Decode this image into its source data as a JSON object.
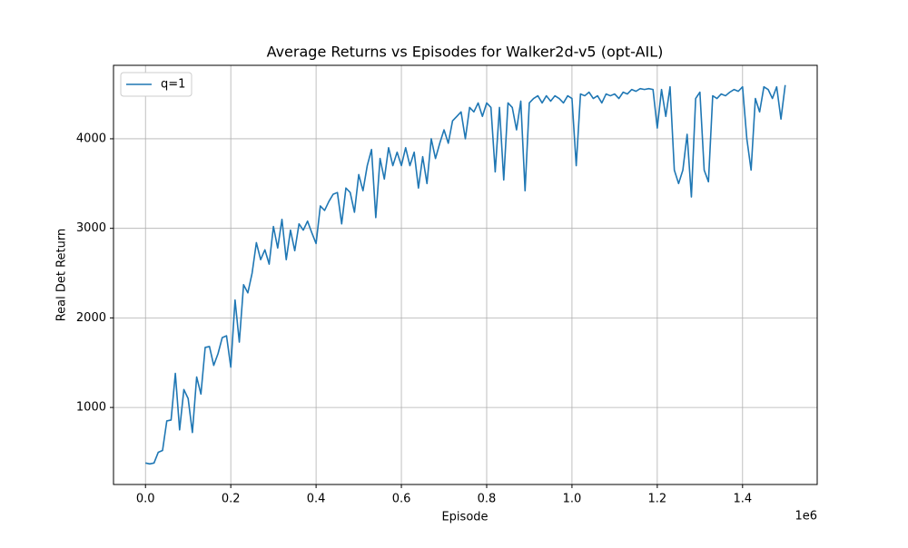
{
  "chart_data": {
    "type": "line",
    "title": "Average Returns vs Episodes for Walker2d-v5 (opt-AIL)",
    "x_label": "Episode",
    "y_label": "Real Det Return",
    "x_offset_label": "1e6",
    "x": [
      0,
      10000,
      20000,
      30000,
      40000,
      50000,
      60000,
      70000,
      80000,
      90000,
      100000,
      110000,
      120000,
      130000,
      140000,
      150000,
      160000,
      170000,
      180000,
      190000,
      200000,
      210000,
      220000,
      230000,
      240000,
      250000,
      260000,
      270000,
      280000,
      290000,
      300000,
      310000,
      320000,
      330000,
      340000,
      350000,
      360000,
      370000,
      380000,
      390000,
      400000,
      410000,
      420000,
      430000,
      440000,
      450000,
      460000,
      470000,
      480000,
      490000,
      500000,
      510000,
      520000,
      530000,
      540000,
      550000,
      560000,
      570000,
      580000,
      590000,
      600000,
      610000,
      620000,
      630000,
      640000,
      650000,
      660000,
      670000,
      680000,
      690000,
      700000,
      710000,
      720000,
      730000,
      740000,
      750000,
      760000,
      770000,
      780000,
      790000,
      800000,
      810000,
      820000,
      830000,
      840000,
      850000,
      860000,
      870000,
      880000,
      890000,
      900000,
      910000,
      920000,
      930000,
      940000,
      950000,
      960000,
      970000,
      980000,
      990000,
      1000000,
      1010000,
      1020000,
      1030000,
      1040000,
      1050000,
      1060000,
      1070000,
      1080000,
      1090000,
      1100000,
      1110000,
      1120000,
      1130000,
      1140000,
      1150000,
      1160000,
      1170000,
      1180000,
      1190000,
      1200000,
      1210000,
      1220000,
      1230000,
      1240000,
      1250000,
      1260000,
      1270000,
      1280000,
      1290000,
      1300000,
      1310000,
      1320000,
      1330000,
      1340000,
      1350000,
      1360000,
      1370000,
      1380000,
      1390000,
      1400000,
      1410000,
      1420000,
      1430000,
      1440000,
      1450000,
      1460000,
      1470000,
      1480000,
      1490000,
      1500000
    ],
    "series": [
      {
        "name": "q=1",
        "color": "#1f77b4",
        "values": [
          380,
          370,
          380,
          500,
          520,
          850,
          860,
          1380,
          750,
          1200,
          1100,
          720,
          1340,
          1150,
          1670,
          1680,
          1470,
          1600,
          1780,
          1800,
          1450,
          2200,
          1730,
          2370,
          2280,
          2500,
          2840,
          2650,
          2760,
          2600,
          3020,
          2780,
          3100,
          2650,
          2980,
          2750,
          3050,
          2980,
          3080,
          2950,
          2830,
          3250,
          3200,
          3300,
          3380,
          3400,
          3050,
          3450,
          3400,
          3180,
          3600,
          3420,
          3700,
          3880,
          3120,
          3780,
          3550,
          3900,
          3700,
          3850,
          3700,
          3900,
          3700,
          3850,
          3450,
          3800,
          3500,
          4000,
          3780,
          3950,
          4100,
          3950,
          4200,
          4250,
          4300,
          4000,
          4350,
          4300,
          4400,
          4250,
          4400,
          4350,
          3630,
          4350,
          3540,
          4400,
          4350,
          4100,
          4420,
          3420,
          4400,
          4450,
          4480,
          4400,
          4480,
          4420,
          4480,
          4450,
          4400,
          4480,
          4450,
          3700,
          4500,
          4480,
          4520,
          4450,
          4480,
          4400,
          4500,
          4480,
          4500,
          4450,
          4520,
          4500,
          4550,
          4530,
          4560,
          4550,
          4560,
          4550,
          4120,
          4550,
          4250,
          4580,
          3650,
          3500,
          3650,
          4050,
          3350,
          4450,
          4520,
          3650,
          3520,
          4480,
          4450,
          4500,
          4480,
          4520,
          4550,
          4530,
          4580,
          4000,
          3650,
          4450,
          4300,
          4580,
          4550,
          4450,
          4580,
          4220,
          4600
        ]
      }
    ],
    "xlim": [
      -75000,
      1575000
    ],
    "ylim": [
      140,
      4820
    ],
    "xticks": [
      {
        "value": 0,
        "label": "0.0"
      },
      {
        "value": 200000,
        "label": "0.2"
      },
      {
        "value": 400000,
        "label": "0.4"
      },
      {
        "value": 600000,
        "label": "0.6"
      },
      {
        "value": 800000,
        "label": "0.8"
      },
      {
        "value": 1000000,
        "label": "1.0"
      },
      {
        "value": 1200000,
        "label": "1.2"
      },
      {
        "value": 1400000,
        "label": "1.4"
      }
    ],
    "yticks": [
      1000,
      2000,
      3000,
      4000
    ],
    "grid": true,
    "legend": "upper-left"
  }
}
